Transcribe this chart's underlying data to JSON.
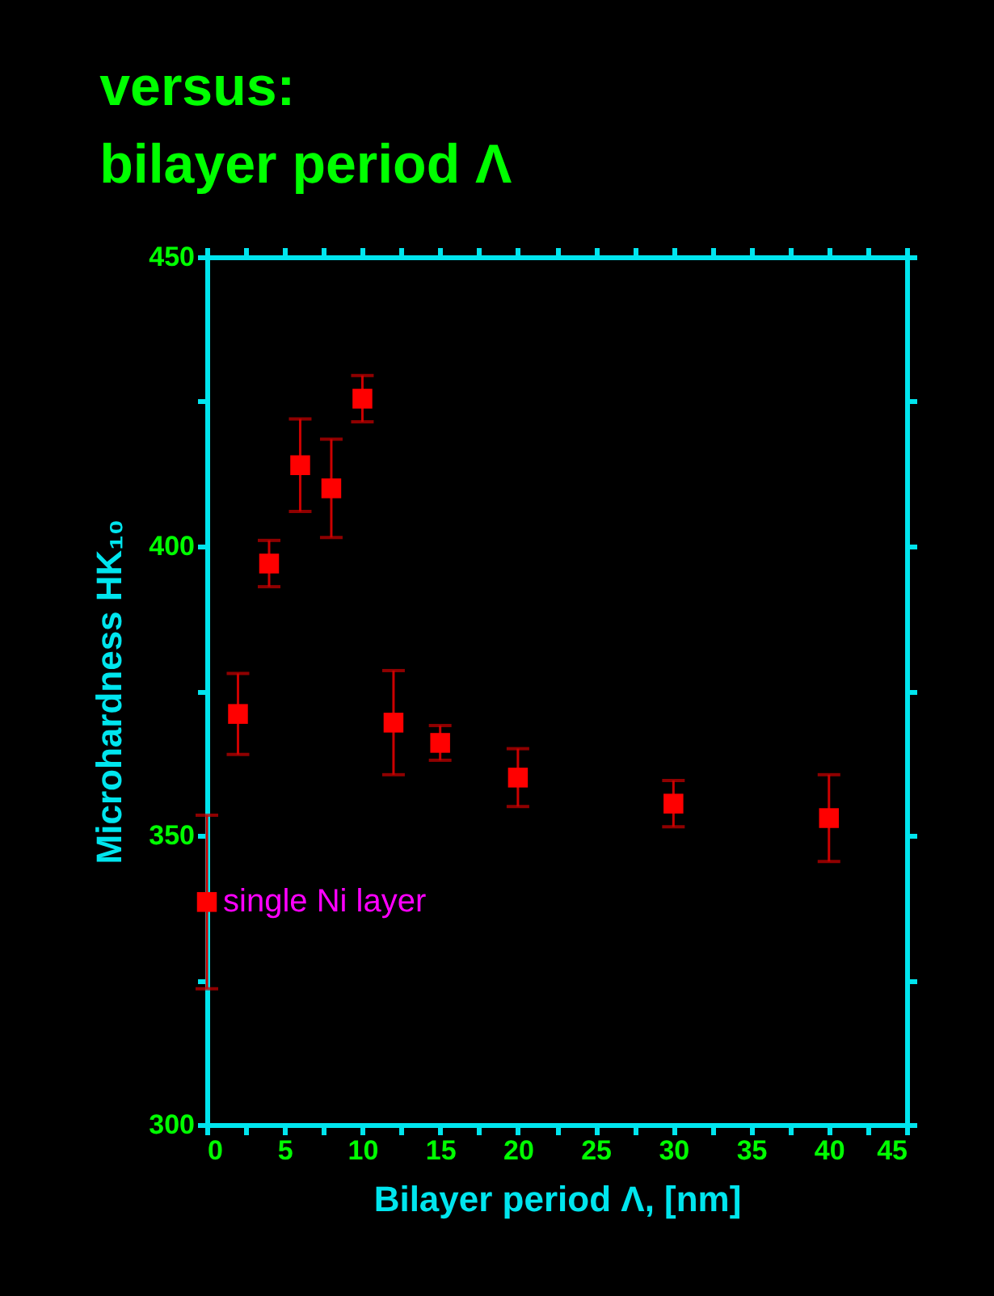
{
  "chart_data": {
    "type": "scatter",
    "title": [
      "versus:",
      "bilayer period Λ"
    ],
    "xlabel": "Bilayer period Λ, [nm]",
    "ylabel": "Microhardness HK₁₀",
    "xlim": [
      0,
      45
    ],
    "xticks": [
      0,
      {
        "value": 2.5,
        "label": null
      },
      5,
      {
        "value": 7.5,
        "label": null
      },
      10,
      {
        "value": 12.5,
        "label": null
      },
      15,
      {
        "value": 17.5,
        "label": null
      },
      20,
      {
        "value": 22.5,
        "label": null
      },
      25,
      {
        "value": 27.5,
        "label": null
      },
      30,
      {
        "value": 32.5,
        "label": null
      },
      35,
      {
        "value": 37.5,
        "label": null
      },
      40,
      {
        "value": 42.5,
        "label": null
      },
      45
    ],
    "ylim": [
      300,
      450
    ],
    "yticks": [
      300,
      {
        "value": 325,
        "label": null
      },
      350,
      {
        "value": 375,
        "label": null
      },
      400,
      {
        "value": 425,
        "label": null
      },
      450
    ],
    "grid": false,
    "marker": "square",
    "series": [
      {
        "color": "#ff0000",
        "x": [
          0,
          2,
          4,
          6,
          8,
          10,
          12,
          15,
          20,
          30,
          40
        ],
        "values": [
          338.5,
          371,
          397,
          414,
          410,
          425.5,
          369.5,
          366,
          360,
          355.5,
          353
        ],
        "errors": [
          15,
          7,
          4,
          8,
          8.5,
          4,
          9,
          3,
          5,
          4,
          7.5
        ]
      }
    ],
    "annotations": [
      {
        "text": "single Ni layer",
        "x": 0,
        "y": 338.5
      }
    ]
  }
}
